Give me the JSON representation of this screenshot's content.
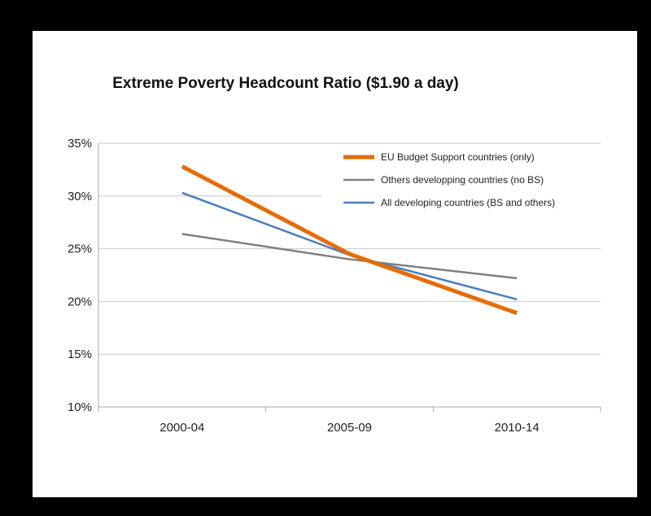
{
  "colors": {
    "frame": "#000000",
    "panel": "#ffffff",
    "gridline": "#c8c8c8",
    "axis": "#aaaaaa"
  },
  "chart_data": {
    "type": "line",
    "title": "Extreme Poverty Headcount Ratio ($1.90 a day)",
    "xlabel": "",
    "ylabel": "",
    "categories": [
      "2000-04",
      "2005-09",
      "2010-14"
    ],
    "ylim": [
      10,
      35
    ],
    "yticks": [
      10,
      15,
      20,
      25,
      30,
      35
    ],
    "ytick_labels": [
      "10%",
      "15%",
      "20%",
      "25%",
      "30%",
      "35%"
    ],
    "grid": true,
    "legend_position": "top-right",
    "series": [
      {
        "name": "EU Budget Support countries (only)",
        "color": "#e46c0a",
        "line_width": "thick",
        "values": [
          32.8,
          24.5,
          18.9
        ]
      },
      {
        "name": "Others developping countries (no BS)",
        "color": "#808080",
        "line_width": "normal",
        "values": [
          26.4,
          24.0,
          22.2
        ]
      },
      {
        "name": "All developing countries (BS and others)",
        "color": "#4a7ebb",
        "line_width": "normal",
        "values": [
          30.3,
          24.4,
          20.2
        ]
      }
    ]
  }
}
